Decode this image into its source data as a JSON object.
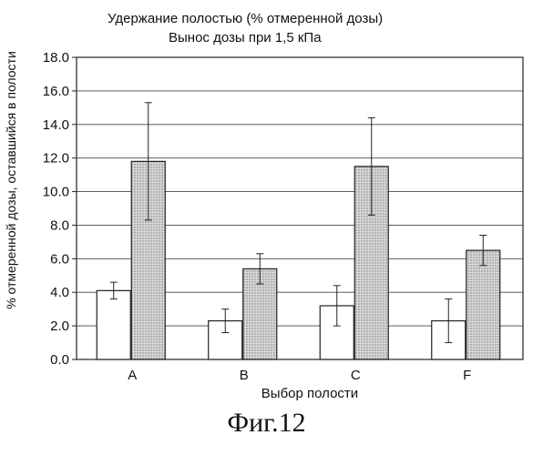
{
  "figure_caption": "Фиг.12",
  "chart_data": {
    "type": "bar",
    "title": "Удержание полостью (% отмеренной дозы)",
    "subtitle": "Вынос дозы при 1,5 кПа",
    "xlabel": "Выбор полости",
    "ylabel": "% отмеренной дозы, оставшийся в полости",
    "ylim": [
      0,
      18
    ],
    "yticks": [
      "0.0",
      "2.0",
      "4.0",
      "6.0",
      "8.0",
      "10.0",
      "12.0",
      "14.0",
      "16.0",
      "18.0"
    ],
    "grid": true,
    "categories": [
      "A",
      "B",
      "C",
      "F"
    ],
    "series": [
      {
        "fill": "#ffffff",
        "values": [
          4.1,
          2.3,
          3.2,
          2.3
        ],
        "error": [
          0.5,
          0.7,
          1.2,
          1.3
        ]
      },
      {
        "fill": "#cfcfcf",
        "values": [
          11.8,
          5.4,
          11.5,
          6.5
        ],
        "error": [
          3.5,
          0.9,
          2.9,
          0.9
        ]
      }
    ]
  }
}
